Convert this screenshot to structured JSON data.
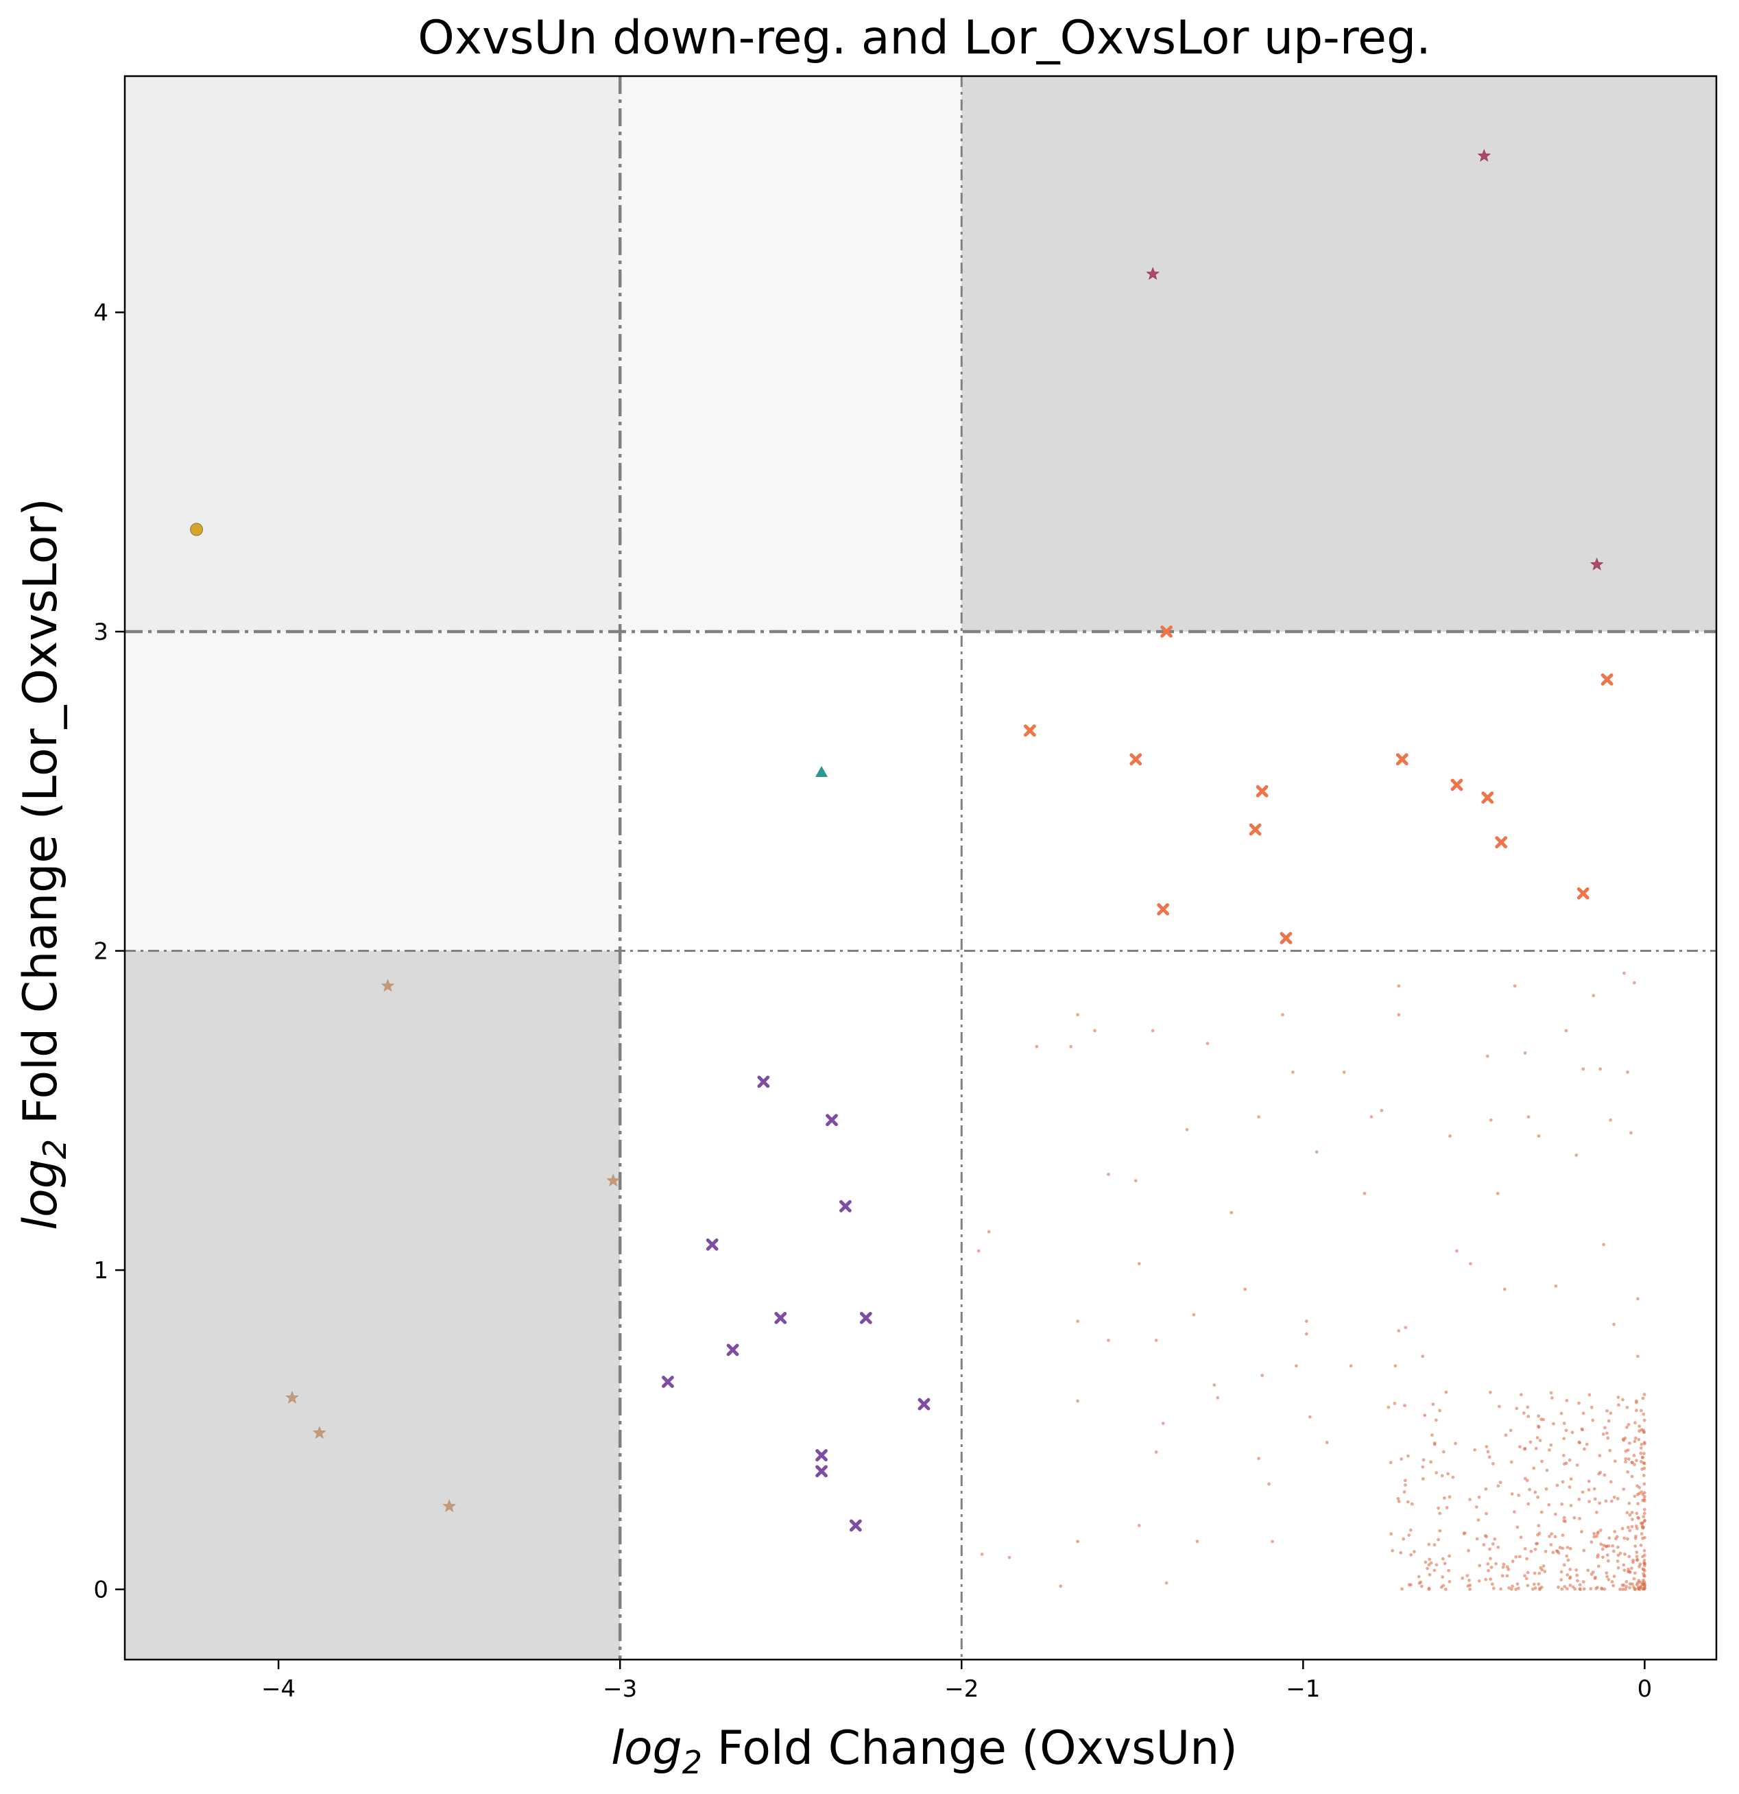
{
  "colors": {
    "shade_dark": "#dadada",
    "shade_mid": "#eeeeee",
    "shade_light": "#f7f7f7",
    "threshold_line": "#808080",
    "bulk_points": "#e0704c",
    "orange_x": "#ef7448",
    "purple_x": "#7e4da3",
    "brown_star": "#c0936f",
    "red_star": "#a23b5f",
    "gold_circle": "#d4a52c",
    "teal_triangle": "#2a9890"
  },
  "chart_data": {
    "type": "scatter",
    "title": "OxvsUn down-reg. and Lor_OxvsLor up-reg.",
    "xlabel_main": "log",
    "xlabel_sub": "2",
    "xlabel_rest": " Fold Change (OxvsUn)",
    "ylabel_main": "log",
    "ylabel_sub": "2",
    "ylabel_rest": " Fold Change (Lor_OxvsLor)",
    "xlim": [
      -4.45,
      0.21
    ],
    "ylim": [
      -0.22,
      4.74
    ],
    "xticks": [
      -4,
      -3,
      -2,
      -1,
      0
    ],
    "xtick_labels": [
      "−4",
      "−3",
      "−2",
      "−1",
      "0"
    ],
    "yticks": [
      0,
      1,
      2,
      3,
      4
    ],
    "ytick_labels": [
      "0",
      "1",
      "2",
      "3",
      "4"
    ],
    "grid": false,
    "thresholds": {
      "x": [
        -3,
        -2
      ],
      "y": [
        2,
        3
      ]
    },
    "regions": [
      {
        "x": [
          -4.45,
          -3
        ],
        "y": [
          3,
          4.74
        ],
        "shade": "mid"
      },
      {
        "x": [
          -3,
          -2
        ],
        "y": [
          3,
          4.74
        ],
        "shade": "light"
      },
      {
        "x": [
          -2,
          0.21
        ],
        "y": [
          3,
          4.74
        ],
        "shade": "dark"
      },
      {
        "x": [
          -4.45,
          -3
        ],
        "y": [
          2,
          3
        ],
        "shade": "light"
      },
      {
        "x": [
          -4.45,
          -3
        ],
        "y": [
          -0.22,
          2
        ],
        "shade": "dark"
      }
    ],
    "series": [
      {
        "marker": "star",
        "color_key": "red_star",
        "size": 9,
        "points": [
          [
            -0.47,
            4.49
          ],
          [
            -1.44,
            4.12
          ],
          [
            -0.14,
            3.21
          ]
        ]
      },
      {
        "marker": "circle",
        "color_key": "gold_circle",
        "size": 9,
        "points": [
          [
            -4.24,
            3.32
          ]
        ]
      },
      {
        "marker": "triangle",
        "color_key": "teal_triangle",
        "size": 9,
        "points": [
          [
            -2.41,
            2.56
          ]
        ]
      },
      {
        "marker": "x",
        "color_key": "orange_x",
        "size": 8,
        "points": [
          [
            -1.4,
            3.0
          ],
          [
            -0.11,
            2.85
          ],
          [
            -1.8,
            2.69
          ],
          [
            -1.49,
            2.6
          ],
          [
            -0.71,
            2.6
          ],
          [
            -0.55,
            2.52
          ],
          [
            -1.12,
            2.5
          ],
          [
            -0.46,
            2.48
          ],
          [
            -1.14,
            2.38
          ],
          [
            -0.42,
            2.34
          ],
          [
            -0.18,
            2.18
          ],
          [
            -1.41,
            2.13
          ],
          [
            -1.05,
            2.04
          ]
        ]
      },
      {
        "marker": "x",
        "color_key": "purple_x",
        "size": 8,
        "points": [
          [
            -2.58,
            1.59
          ],
          [
            -2.38,
            1.47
          ],
          [
            -2.34,
            1.2
          ],
          [
            -2.73,
            1.08
          ],
          [
            -2.53,
            0.85
          ],
          [
            -2.28,
            0.85
          ],
          [
            -2.67,
            0.75
          ],
          [
            -2.86,
            0.65
          ],
          [
            -2.11,
            0.58
          ],
          [
            -2.41,
            0.42
          ],
          [
            -2.41,
            0.37
          ],
          [
            -2.31,
            0.2
          ]
        ]
      },
      {
        "marker": "star",
        "color_key": "brown_star",
        "size": 9,
        "points": [
          [
            -3.68,
            1.89
          ],
          [
            -3.02,
            1.28
          ],
          [
            -3.96,
            0.6
          ],
          [
            -3.88,
            0.49
          ],
          [
            -3.5,
            0.26
          ]
        ]
      }
    ],
    "bulk": {
      "color_key": "bulk_points",
      "description_free_points": [
        [
          -1.95,
          1.06
        ],
        [
          -1.92,
          1.12
        ],
        [
          -1.94,
          0.11
        ],
        [
          -1.86,
          0.1
        ],
        [
          -1.78,
          1.7
        ],
        [
          -1.71,
          0.01
        ],
        [
          -1.68,
          1.7
        ],
        [
          -1.66,
          1.8
        ],
        [
          -1.66,
          0.84
        ],
        [
          -1.66,
          0.59
        ],
        [
          -1.66,
          0.15
        ],
        [
          -1.61,
          1.75
        ],
        [
          -1.57,
          1.3
        ],
        [
          -1.57,
          0.78
        ],
        [
          -1.49,
          1.28
        ],
        [
          -1.48,
          1.02
        ],
        [
          -1.48,
          0.2
        ],
        [
          -1.44,
          1.75
        ],
        [
          -1.43,
          0.78
        ],
        [
          -1.43,
          0.43
        ],
        [
          -1.41,
          0.52
        ],
        [
          -1.4,
          0.02
        ],
        [
          -1.34,
          1.44
        ],
        [
          -1.32,
          0.86
        ],
        [
          -1.31,
          0.15
        ],
        [
          -1.28,
          1.71
        ],
        [
          -1.26,
          0.64
        ],
        [
          -1.25,
          0.6
        ],
        [
          -1.21,
          1.18
        ],
        [
          -1.17,
          0.94
        ],
        [
          -1.13,
          1.48
        ],
        [
          -1.12,
          0.67
        ],
        [
          -1.13,
          0.41
        ],
        [
          -1.1,
          0.33
        ],
        [
          -1.09,
          0.15
        ],
        [
          -1.06,
          1.8
        ],
        [
          -1.03,
          1.62
        ],
        [
          -1.02,
          0.7
        ],
        [
          -0.99,
          0.84
        ],
        [
          -0.99,
          0.8
        ],
        [
          -0.98,
          0.54
        ],
        [
          -0.96,
          1.37
        ],
        [
          -0.93,
          0.46
        ],
        [
          -0.88,
          1.62
        ],
        [
          -0.86,
          0.7
        ],
        [
          -0.82,
          1.24
        ],
        [
          -0.8,
          1.48
        ],
        [
          -0.77,
          1.5
        ],
        [
          -0.75,
          0.57
        ],
        [
          -0.73,
          0.7
        ],
        [
          -0.72,
          1.89
        ],
        [
          -0.72,
          1.8
        ],
        [
          -0.72,
          0.81
        ],
        [
          -0.7,
          0.82
        ],
        [
          -0.65,
          0.73
        ],
        [
          -0.6,
          0.56
        ],
        [
          -0.57,
          1.42
        ],
        [
          -0.55,
          1.06
        ],
        [
          -0.51,
          1.02
        ],
        [
          -0.46,
          1.67
        ],
        [
          -0.45,
          1.47
        ],
        [
          -0.43,
          1.24
        ],
        [
          -0.41,
          0.94
        ],
        [
          -0.38,
          1.89
        ],
        [
          -0.35,
          1.68
        ],
        [
          -0.34,
          1.48
        ],
        [
          -0.31,
          1.42
        ],
        [
          -0.26,
          0.95
        ],
        [
          -0.23,
          1.75
        ],
        [
          -0.2,
          1.36
        ],
        [
          -0.18,
          1.63
        ],
        [
          -0.15,
          1.86
        ],
        [
          -0.13,
          1.63
        ],
        [
          -0.12,
          1.08
        ],
        [
          -0.1,
          1.47
        ],
        [
          -0.09,
          0.83
        ],
        [
          -0.06,
          1.93
        ],
        [
          -0.05,
          1.62
        ],
        [
          -0.04,
          1.43
        ],
        [
          -0.03,
          1.9
        ],
        [
          -0.02,
          0.91
        ],
        [
          -0.02,
          0.73
        ],
        [
          -0.01,
          0.56
        ],
        [
          -0.01,
          0.4
        ]
      ]
    }
  }
}
